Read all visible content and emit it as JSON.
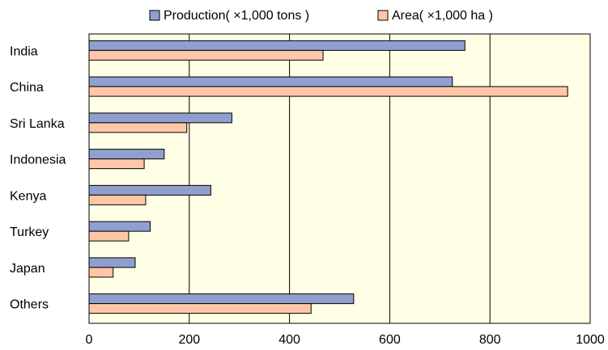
{
  "chart_data": {
    "type": "bar",
    "orientation": "horizontal",
    "categories": [
      "India",
      "China",
      "Sri Lanka",
      "Indonesia",
      "Kenya",
      "Turkey",
      "Japan",
      "Others"
    ],
    "series": [
      {
        "name": "Production( ×1,000 tons )",
        "color": "#8f9fcf",
        "values": [
          750,
          725,
          285,
          150,
          243,
          122,
          92,
          528
        ]
      },
      {
        "name": "Area( ×1,000 ha )",
        "color": "#ffc7a8",
        "values": [
          467,
          955,
          195,
          110,
          113,
          79,
          48,
          443
        ]
      }
    ],
    "x_ticks": [
      0,
      200,
      400,
      600,
      800,
      1000
    ],
    "xlim": [
      0,
      1000
    ],
    "grid": "vertical",
    "legend_position": "top",
    "plot_background": "#ffffe6"
  }
}
